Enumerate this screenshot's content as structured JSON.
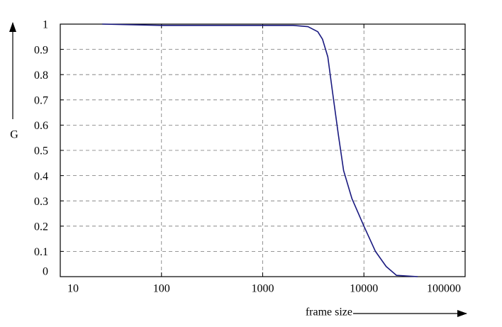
{
  "chart_data": {
    "type": "line",
    "xlabel": "frame size",
    "ylabel": "G",
    "x": [
      26,
      100,
      500,
      1000,
      2000,
      2800,
      3500,
      3900,
      4400,
      4900,
      5600,
      6300,
      7600,
      10000,
      13000,
      16600,
      21000,
      34000
    ],
    "series": [
      {
        "name": "G",
        "color": "#1a1a80",
        "values": [
          1.0,
          0.995,
          0.995,
          0.995,
          0.995,
          0.99,
          0.97,
          0.94,
          0.87,
          0.73,
          0.56,
          0.42,
          0.31,
          0.2,
          0.1,
          0.04,
          0.005,
          0
        ]
      }
    ],
    "log_x": true,
    "xlim": [
      10,
      100000
    ],
    "xticks": [
      10,
      100,
      1000,
      10000,
      100000
    ],
    "ylim": [
      0,
      1
    ],
    "yticks": [
      0,
      0.1,
      0.2,
      0.3,
      0.4,
      0.5,
      0.6,
      0.7,
      0.8,
      0.9,
      1
    ],
    "grid": true
  }
}
